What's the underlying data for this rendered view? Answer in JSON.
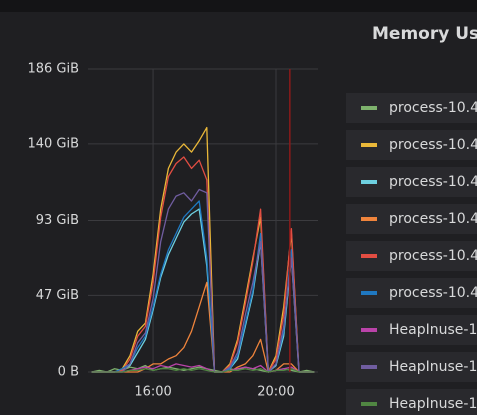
{
  "chart_data": {
    "type": "line",
    "title": "Memory Usa",
    "x": [
      840,
      855,
      870,
      885,
      900,
      915,
      930,
      945,
      960,
      975,
      990,
      1005,
      1020,
      1035,
      1050,
      1065,
      1080,
      1095,
      1110,
      1125,
      1140,
      1155,
      1170,
      1185,
      1200,
      1215,
      1230,
      1245,
      1260,
      1275
    ],
    "xlim": [
      833,
      1282
    ],
    "xticks": [
      {
        "value": 960,
        "label": "16:00"
      },
      {
        "value": 1200,
        "label": "20:00"
      }
    ],
    "ylim": [
      0,
      186
    ],
    "yticks": [
      {
        "value": 0,
        "label": "0 B"
      },
      {
        "value": 47,
        "label": "47 GiB"
      },
      {
        "value": 93,
        "label": "93 GiB"
      },
      {
        "value": 140,
        "label": "140 GiB"
      },
      {
        "value": 186,
        "label": "186 GiB"
      }
    ],
    "grid": true,
    "annotation_x": 1227,
    "annotation_color": "#8b1a1a",
    "series": [
      {
        "name": "process-10.4",
        "color": "#7eb26d",
        "values": [
          0,
          1,
          0,
          2,
          1,
          3,
          2,
          4,
          1,
          2,
          3,
          2,
          1,
          2,
          3,
          2,
          1,
          0,
          2,
          1,
          3,
          2,
          1,
          0,
          1,
          2,
          1,
          0,
          1,
          0
        ]
      },
      {
        "name": "process-10.4",
        "color": "#eab839",
        "values": [
          0,
          0,
          0,
          0,
          2,
          10,
          25,
          30,
          60,
          100,
          125,
          135,
          140,
          135,
          142,
          150,
          0,
          0,
          5,
          20,
          45,
          70,
          95,
          0,
          10,
          40,
          85,
          0,
          0,
          0
        ]
      },
      {
        "name": "process-10.4",
        "color": "#6ed0e0",
        "values": [
          0,
          0,
          0,
          0,
          1,
          4,
          12,
          20,
          38,
          58,
          72,
          82,
          92,
          97,
          100,
          65,
          0,
          0,
          2,
          8,
          28,
          48,
          80,
          0,
          4,
          22,
          70,
          0,
          0,
          0
        ]
      },
      {
        "name": "process-10.4",
        "color": "#ef843c",
        "values": [
          0,
          0,
          0,
          0,
          0,
          0,
          0,
          2,
          5,
          5,
          8,
          10,
          15,
          25,
          40,
          55,
          0,
          0,
          0,
          3,
          5,
          10,
          20,
          0,
          1,
          5,
          5,
          0,
          0,
          0
        ]
      },
      {
        "name": "process-10.4",
        "color": "#e24d42",
        "values": [
          0,
          0,
          0,
          0,
          1,
          8,
          22,
          28,
          55,
          95,
          120,
          128,
          132,
          125,
          130,
          118,
          0,
          0,
          4,
          18,
          42,
          68,
          100,
          0,
          8,
          35,
          88,
          0,
          0,
          0
        ]
      },
      {
        "name": "process-10.4",
        "color": "#1f78c1",
        "values": [
          0,
          0,
          0,
          0,
          2,
          5,
          15,
          22,
          40,
          60,
          75,
          85,
          95,
          100,
          105,
          70,
          0,
          0,
          2,
          10,
          30,
          50,
          85,
          0,
          5,
          25,
          75,
          0,
          0,
          0
        ]
      },
      {
        "name": "HeapInuse-1",
        "color": "#ba43a9",
        "values": [
          0,
          0,
          0,
          0,
          0,
          1,
          2,
          3,
          2,
          4,
          3,
          5,
          4,
          3,
          4,
          2,
          0,
          0,
          1,
          2,
          3,
          2,
          4,
          0,
          1,
          2,
          3,
          0,
          0,
          0
        ]
      },
      {
        "name": "HeapInuse-1",
        "color": "#705da0",
        "values": [
          0,
          0,
          0,
          0,
          0,
          5,
          18,
          24,
          45,
          80,
          100,
          108,
          110,
          105,
          112,
          110,
          0,
          0,
          3,
          12,
          35,
          55,
          80,
          0,
          5,
          28,
          70,
          0,
          0,
          0
        ]
      },
      {
        "name": "HeapInuse-1",
        "color": "#508642",
        "values": [
          0,
          0,
          0,
          0,
          0,
          1,
          1,
          2,
          1,
          2,
          2,
          1,
          2,
          1,
          2,
          1,
          0,
          0,
          1,
          1,
          2,
          1,
          2,
          0,
          1,
          1,
          2,
          0,
          0,
          0
        ]
      }
    ]
  }
}
